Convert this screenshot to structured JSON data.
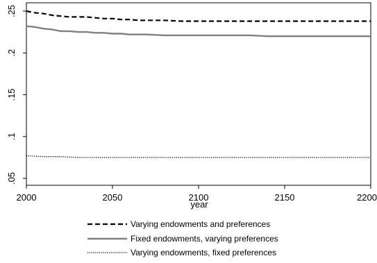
{
  "chart_data": {
    "type": "line",
    "xlabel": "year",
    "ylabel": "",
    "xlim": [
      2000,
      2200
    ],
    "ylim": [
      0.05,
      0.25
    ],
    "xticks": [
      2000,
      2050,
      2100,
      2150,
      2200
    ],
    "xtick_labels": [
      "2000",
      "2050",
      "2100",
      "2150",
      "2200"
    ],
    "yticks": [
      0.05,
      0.1,
      0.15,
      0.2,
      0.25
    ],
    "ytick_labels": [
      ".05",
      ".1",
      ".15",
      ".2",
      ".25"
    ],
    "grid": false,
    "legend_position": "bottom",
    "series": [
      {
        "name": "Varying endowments and preferences",
        "style": "dashed",
        "color": "#000000",
        "x": [
          2000,
          2005,
          2010,
          2015,
          2020,
          2025,
          2030,
          2035,
          2040,
          2045,
          2050,
          2055,
          2060,
          2065,
          2070,
          2080,
          2090,
          2100,
          2110,
          2120,
          2130,
          2140,
          2150,
          2160,
          2170,
          2180,
          2190,
          2200
        ],
        "y": [
          0.25,
          0.248,
          0.247,
          0.245,
          0.244,
          0.243,
          0.243,
          0.243,
          0.242,
          0.241,
          0.241,
          0.24,
          0.24,
          0.239,
          0.239,
          0.239,
          0.238,
          0.238,
          0.238,
          0.238,
          0.238,
          0.238,
          0.238,
          0.238,
          0.238,
          0.238,
          0.238,
          0.238
        ]
      },
      {
        "name": "Fixed endowments, varying preferences",
        "style": "solid",
        "color": "#808080",
        "x": [
          2000,
          2005,
          2010,
          2015,
          2020,
          2025,
          2030,
          2035,
          2040,
          2045,
          2050,
          2055,
          2060,
          2065,
          2070,
          2080,
          2090,
          2100,
          2110,
          2120,
          2130,
          2140,
          2150,
          2160,
          2170,
          2180,
          2190,
          2200
        ],
        "y": [
          0.232,
          0.231,
          0.229,
          0.228,
          0.226,
          0.226,
          0.225,
          0.225,
          0.224,
          0.224,
          0.223,
          0.223,
          0.222,
          0.222,
          0.222,
          0.221,
          0.221,
          0.221,
          0.221,
          0.221,
          0.221,
          0.22,
          0.22,
          0.22,
          0.22,
          0.22,
          0.22,
          0.22
        ]
      },
      {
        "name": "Varying endowments, fixed preferences",
        "style": "dotted",
        "color": "#000000",
        "x": [
          2000,
          2010,
          2020,
          2030,
          2040,
          2050,
          2060,
          2080,
          2100,
          2120,
          2150,
          2200
        ],
        "y": [
          0.077,
          0.076,
          0.076,
          0.075,
          0.075,
          0.075,
          0.075,
          0.075,
          0.075,
          0.075,
          0.075,
          0.075
        ]
      }
    ]
  }
}
